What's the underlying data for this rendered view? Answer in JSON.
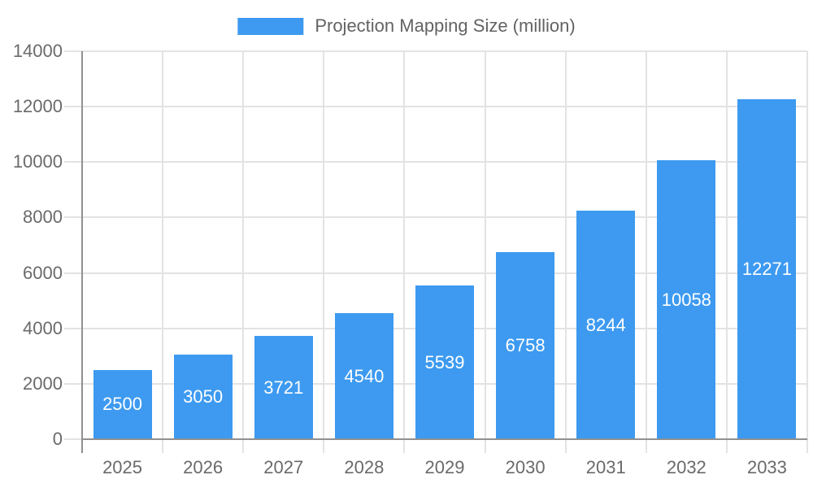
{
  "legend": {
    "label": "Projection Mapping Size (million)"
  },
  "colors": {
    "bar": "#3D9AF0",
    "grid": "#E3E3E3",
    "axis_line": "#909090",
    "axis_label": "#6A6A6A",
    "legend_text": "#636363",
    "value_label": "#FFFFFF",
    "background": "#FFFFFF"
  },
  "chart_data": {
    "type": "bar",
    "title": "Projection Mapping Size (million)",
    "categories": [
      "2025",
      "2026",
      "2027",
      "2028",
      "2029",
      "2030",
      "2031",
      "2032",
      "2033"
    ],
    "values": [
      2500,
      3050,
      3721,
      4540,
      5539,
      6758,
      8244,
      10058,
      12271
    ],
    "xlabel": "",
    "ylabel": "",
    "ylim": [
      0,
      14000
    ],
    "yticks": [
      0,
      2000,
      4000,
      6000,
      8000,
      10000,
      12000,
      14000
    ],
    "grid": true,
    "legend_position": "top",
    "value_label_position": "inside-center"
  }
}
